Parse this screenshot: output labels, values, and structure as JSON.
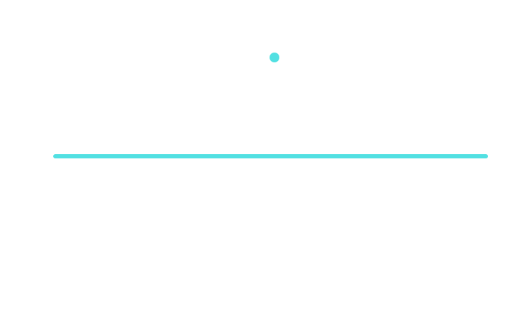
{
  "colors": {
    "background": "#ffffff",
    "accent": "#52e0e2"
  },
  "shapes": {
    "dot": "circle",
    "bar": "horizontal-line"
  }
}
